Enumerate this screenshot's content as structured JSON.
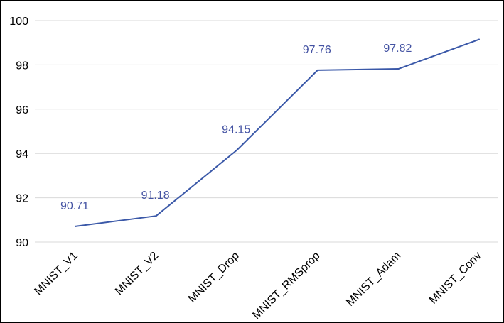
{
  "chart_data": {
    "type": "line",
    "categories": [
      "MNIST_V1",
      "MNIST_V2",
      "MNIST_Drop",
      "MNIST_RMSprop",
      "MNIST_Adam",
      "MNIST_Conv"
    ],
    "series": [
      {
        "values": [
          90.71,
          91.18,
          94.15,
          97.76,
          97.82,
          99.15
        ],
        "data_labels": [
          "90.71",
          "91.18",
          "94.15",
          "97.76",
          "97.82",
          ""
        ]
      }
    ],
    "ylim": [
      90,
      100
    ],
    "yticks": [
      90,
      92,
      94,
      96,
      98,
      100
    ],
    "ytick_labels": [
      "90",
      "92",
      "94",
      "96",
      "98",
      "100"
    ],
    "grid": true,
    "legend": "none",
    "title": "",
    "xlabel": "",
    "ylabel": "",
    "colors": {
      "line": "#3a58a8",
      "data_label": "#4453a3",
      "grid": "#d9d9d9",
      "text": "#000000"
    }
  }
}
